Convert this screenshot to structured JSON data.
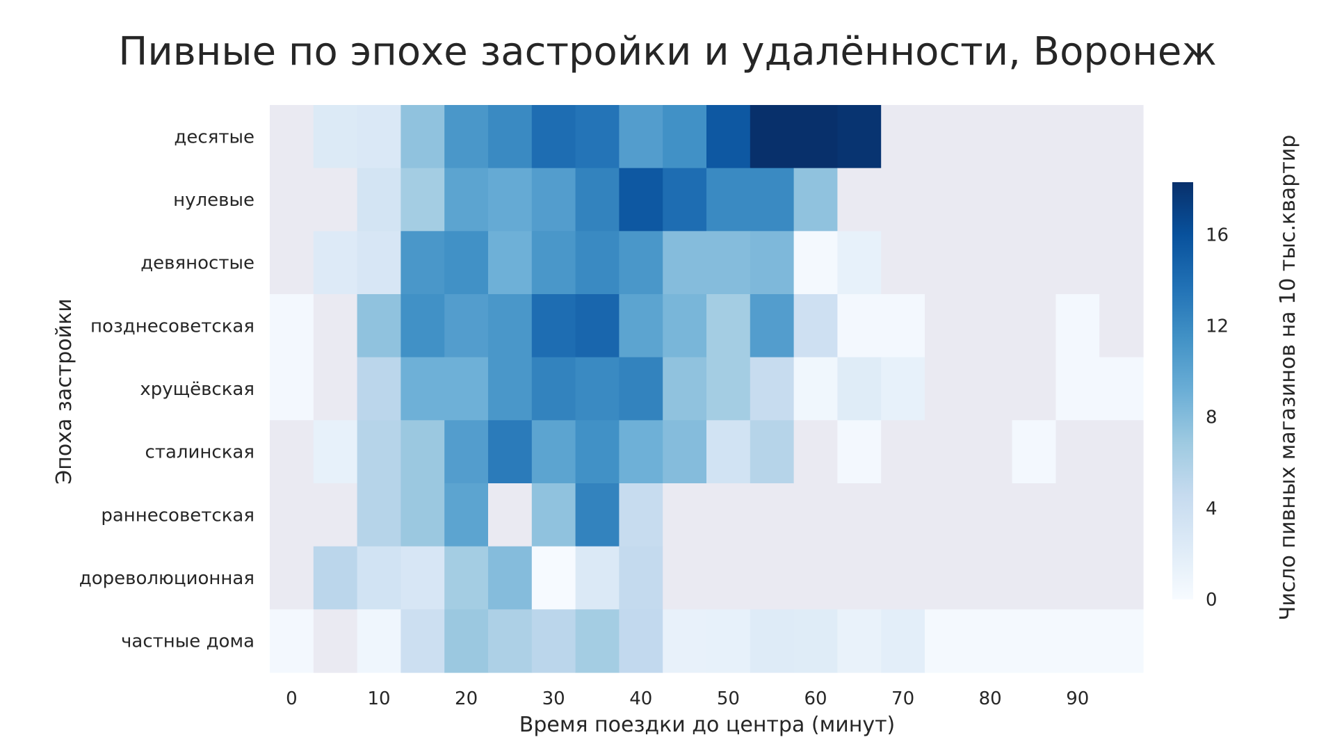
{
  "chart_data": {
    "type": "heatmap",
    "title": "Пивные по эпохе застройки и удалённости, Воронеж",
    "xlabel": "Время поездки до центра (минут)",
    "ylabel": "Эпоха застройки",
    "colorbar_label": "Число пивных магазинов на 10 тыс.квартир",
    "colorbar_ticks": [
      0,
      4,
      8,
      12,
      16
    ],
    "colorbar_range": [
      0,
      18.3
    ],
    "colormap": [
      "#f7fbff",
      "#deebf7",
      "#c6dbef",
      "#9ecae1",
      "#6baed6",
      "#4292c6",
      "#2171b5",
      "#08519c",
      "#08306b"
    ],
    "missing_color": "#eaeaf2",
    "x": [
      0,
      5,
      10,
      15,
      20,
      25,
      30,
      35,
      40,
      45,
      50,
      55,
      60,
      65,
      70,
      75,
      80,
      85,
      90,
      95
    ],
    "x_tick_labels": [
      "0",
      "10",
      "20",
      "30",
      "40",
      "50",
      "60",
      "70",
      "80",
      "90"
    ],
    "x_tick_values": [
      0,
      10,
      20,
      30,
      40,
      50,
      60,
      70,
      80,
      90
    ],
    "y": [
      "десятые",
      "нулевые",
      "девяностые",
      "позднесоветская",
      "хрущёвская",
      "сталинская",
      "раннесоветская",
      "дореволюционная",
      "частные дома"
    ],
    "values": [
      [
        null,
        2.5,
        2.7,
        7.5,
        11,
        12,
        14,
        13.5,
        10.5,
        11.5,
        15.5,
        18.3,
        18.3,
        18,
        null,
        null,
        null,
        null,
        null,
        null
      ],
      [
        null,
        null,
        3.3,
        6.5,
        10,
        9.5,
        10.5,
        12.5,
        15.5,
        14,
        12,
        12,
        7.5,
        null,
        null,
        null,
        null,
        null,
        null,
        null
      ],
      [
        null,
        2.4,
        3.0,
        11,
        11.5,
        9,
        11,
        12,
        11,
        8,
        8,
        8.3,
        0.3,
        1.5,
        null,
        null,
        null,
        null,
        null,
        null
      ],
      [
        0.4,
        null,
        7.5,
        11.5,
        10.5,
        11,
        14,
        14.5,
        10,
        8.5,
        6.5,
        10.5,
        3.8,
        0.4,
        0.4,
        null,
        null,
        null,
        0.4,
        null
      ],
      [
        0.4,
        null,
        5.2,
        9,
        9,
        11,
        12.5,
        12,
        12.5,
        7.5,
        6.5,
        4.5,
        0.6,
        2.2,
        1.5,
        null,
        null,
        null,
        0.4,
        0.4
      ],
      [
        null,
        1.5,
        5.5,
        7,
        10.5,
        13,
        10,
        11.5,
        9,
        8,
        3.5,
        5.5,
        null,
        0.4,
        null,
        null,
        null,
        0.4,
        null,
        null
      ],
      [
        null,
        null,
        5.5,
        7,
        10,
        null,
        7.5,
        12.5,
        4.5,
        null,
        null,
        null,
        null,
        null,
        null,
        null,
        null,
        null,
        null,
        null
      ],
      [
        null,
        5.2,
        3.5,
        3.0,
        6.5,
        8,
        0.1,
        2.6,
        4.7,
        null,
        null,
        null,
        null,
        null,
        null,
        null,
        null,
        null,
        null,
        null
      ],
      [
        0.4,
        null,
        0.7,
        4.0,
        7,
        6,
        5.2,
        6.5,
        4.8,
        1.4,
        1.5,
        2.3,
        2.2,
        1.3,
        1.8,
        0.3,
        0.3,
        0.3,
        0.3,
        0.3
      ]
    ]
  }
}
